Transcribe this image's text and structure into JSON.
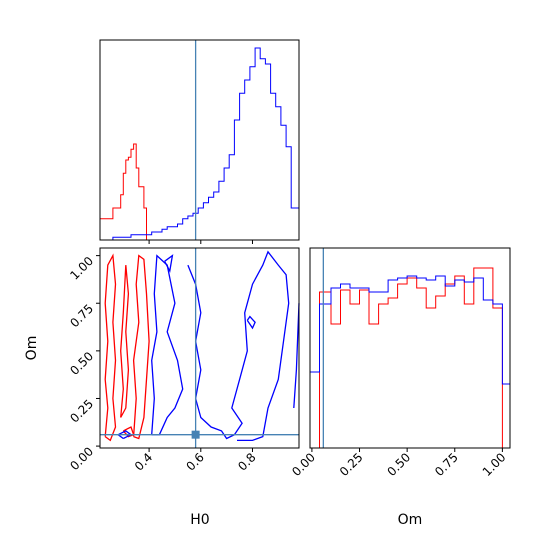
{
  "chart_data": {
    "type": "corner",
    "xlabel_h0": "H0",
    "xlabel_om": "Om",
    "ylabel_om": "Om",
    "truth": {
      "H0": 0.58,
      "Om": 0.06
    },
    "colors": {
      "red": "#ff0000",
      "blue": "#0000ff",
      "truth": "#4682b4"
    },
    "h0_range": [
      0.21,
      0.98
    ],
    "om_range": [
      -0.01,
      1.04
    ],
    "h0_ticks": [
      "0.4",
      "0.6",
      "0.8"
    ],
    "om_ticks": [
      "0.00",
      "0.25",
      "0.50",
      "0.75",
      "1.00"
    ],
    "hist_h0": {
      "red": {
        "x": [
          0.21,
          0.26,
          0.29,
          0.3,
          0.31,
          0.32,
          0.33,
          0.34,
          0.35,
          0.36,
          0.38,
          0.39
        ],
        "y": [
          0.08,
          0.12,
          0.17,
          0.25,
          0.3,
          0.31,
          0.34,
          0.36,
          0.27,
          0.2,
          0.12,
          0.0
        ]
      },
      "blue": {
        "x": [
          0.21,
          0.26,
          0.29,
          0.31,
          0.33,
          0.35,
          0.37,
          0.39,
          0.41,
          0.43,
          0.45,
          0.47,
          0.49,
          0.51,
          0.53,
          0.55,
          0.57,
          0.59,
          0.61,
          0.63,
          0.65,
          0.67,
          0.69,
          0.71,
          0.73,
          0.75,
          0.77,
          0.79,
          0.81,
          0.83,
          0.85,
          0.87,
          0.89,
          0.91,
          0.93,
          0.95,
          0.98
        ],
        "y": [
          0.0,
          0.01,
          0.01,
          0.01,
          0.02,
          0.02,
          0.02,
          0.02,
          0.03,
          0.03,
          0.04,
          0.05,
          0.05,
          0.06,
          0.08,
          0.09,
          0.1,
          0.12,
          0.14,
          0.16,
          0.18,
          0.22,
          0.27,
          0.32,
          0.45,
          0.55,
          0.6,
          0.65,
          0.72,
          0.68,
          0.66,
          0.55,
          0.5,
          0.43,
          0.35,
          0.12,
          0.0
        ]
      }
    },
    "hist_om": {
      "red": {
        "x": [
          -0.01,
          0.04,
          0.1,
          0.15,
          0.2,
          0.25,
          0.3,
          0.35,
          0.4,
          0.45,
          0.5,
          0.55,
          0.6,
          0.65,
          0.7,
          0.75,
          0.8,
          0.85,
          0.9,
          0.95,
          1.0,
          1.04
        ],
        "y": [
          0.0,
          0.78,
          0.62,
          0.79,
          0.72,
          0.79,
          0.62,
          0.72,
          0.75,
          0.82,
          0.85,
          0.8,
          0.7,
          0.76,
          0.82,
          0.86,
          0.72,
          0.9,
          0.9,
          0.7,
          0.0,
          0.0
        ]
      },
      "blue": {
        "x": [
          -0.01,
          0.04,
          0.1,
          0.15,
          0.2,
          0.25,
          0.3,
          0.35,
          0.4,
          0.45,
          0.5,
          0.55,
          0.6,
          0.65,
          0.7,
          0.75,
          0.8,
          0.85,
          0.9,
          0.95,
          1.0,
          1.04
        ],
        "y": [
          0.38,
          0.72,
          0.8,
          0.82,
          0.8,
          0.8,
          0.78,
          0.78,
          0.84,
          0.85,
          0.86,
          0.85,
          0.84,
          0.86,
          0.81,
          0.84,
          0.83,
          0.85,
          0.74,
          0.72,
          0.32,
          0.32
        ]
      }
    },
    "contours": {
      "red": [
        [
          [
            0.23,
            0.05
          ],
          [
            0.24,
            0.2
          ],
          [
            0.23,
            0.35
          ],
          [
            0.24,
            0.55
          ],
          [
            0.23,
            0.75
          ],
          [
            0.24,
            0.95
          ],
          [
            0.26,
            1.0
          ],
          [
            0.27,
            0.85
          ],
          [
            0.26,
            0.65
          ],
          [
            0.27,
            0.45
          ],
          [
            0.26,
            0.25
          ],
          [
            0.27,
            0.1
          ],
          [
            0.25,
            0.03
          ],
          [
            0.23,
            0.05
          ]
        ],
        [
          [
            0.29,
            0.15
          ],
          [
            0.3,
            0.3
          ],
          [
            0.29,
            0.5
          ],
          [
            0.3,
            0.7
          ],
          [
            0.31,
            0.95
          ],
          [
            0.32,
            0.8
          ],
          [
            0.31,
            0.6
          ],
          [
            0.32,
            0.4
          ],
          [
            0.31,
            0.2
          ],
          [
            0.29,
            0.15
          ]
        ],
        [
          [
            0.34,
            0.05
          ],
          [
            0.35,
            0.25
          ],
          [
            0.34,
            0.45
          ],
          [
            0.36,
            0.65
          ],
          [
            0.35,
            0.85
          ],
          [
            0.36,
            1.0
          ],
          [
            0.38,
            0.98
          ],
          [
            0.39,
            0.8
          ],
          [
            0.4,
            0.55
          ],
          [
            0.39,
            0.35
          ],
          [
            0.38,
            0.15
          ],
          [
            0.36,
            0.04
          ],
          [
            0.34,
            0.05
          ]
        ],
        [
          [
            0.3,
            0.08
          ],
          [
            0.32,
            0.05
          ],
          [
            0.34,
            0.06
          ],
          [
            0.33,
            0.1
          ],
          [
            0.3,
            0.08
          ]
        ]
      ],
      "blue": [
        [
          [
            0.3,
            0.04
          ],
          [
            0.33,
            0.06
          ],
          [
            0.31,
            0.08
          ],
          [
            0.28,
            0.06
          ],
          [
            0.3,
            0.04
          ]
        ],
        [
          [
            0.41,
            0.06
          ],
          [
            0.42,
            0.25
          ],
          [
            0.41,
            0.45
          ],
          [
            0.43,
            0.6
          ],
          [
            0.42,
            0.8
          ],
          [
            0.43,
            1.0
          ],
          [
            0.47,
            0.95
          ],
          [
            0.5,
            0.75
          ],
          [
            0.47,
            0.6
          ],
          [
            0.51,
            0.45
          ],
          [
            0.53,
            0.3
          ],
          [
            0.5,
            0.2
          ],
          [
            0.47,
            0.15
          ],
          [
            0.44,
            0.06
          ],
          [
            0.41,
            0.06
          ]
        ],
        [
          [
            0.55,
            0.95
          ],
          [
            0.58,
            0.85
          ],
          [
            0.6,
            0.7
          ],
          [
            0.58,
            0.55
          ],
          [
            0.6,
            0.4
          ],
          [
            0.58,
            0.25
          ],
          [
            0.6,
            0.15
          ],
          [
            0.64,
            0.1
          ],
          [
            0.68,
            0.08
          ],
          [
            0.7,
            0.04
          ],
          [
            0.73,
            0.06
          ],
          [
            0.76,
            0.12
          ],
          [
            0.72,
            0.2
          ],
          [
            0.75,
            0.35
          ],
          [
            0.78,
            0.5
          ],
          [
            0.77,
            0.7
          ],
          [
            0.8,
            0.85
          ],
          [
            0.84,
            0.95
          ],
          [
            0.86,
            1.02
          ],
          [
            0.9,
            0.95
          ],
          [
            0.93,
            0.9
          ],
          [
            0.94,
            0.75
          ],
          [
            0.92,
            0.55
          ],
          [
            0.9,
            0.35
          ],
          [
            0.86,
            0.2
          ],
          [
            0.84,
            0.05
          ],
          [
            0.8,
            0.03
          ],
          [
            0.74,
            0.03
          ]
        ],
        [
          [
            0.96,
            0.2
          ],
          [
            0.97,
            0.4
          ],
          [
            0.98,
            0.75
          ]
        ],
        [
          [
            0.78,
            0.66
          ],
          [
            0.8,
            0.62
          ],
          [
            0.81,
            0.65
          ],
          [
            0.79,
            0.68
          ],
          [
            0.78,
            0.66
          ]
        ],
        [
          [
            0.46,
            0.97
          ],
          [
            0.48,
            0.92
          ],
          [
            0.49,
            1.0
          ],
          [
            0.46,
            0.97
          ]
        ]
      ]
    }
  }
}
